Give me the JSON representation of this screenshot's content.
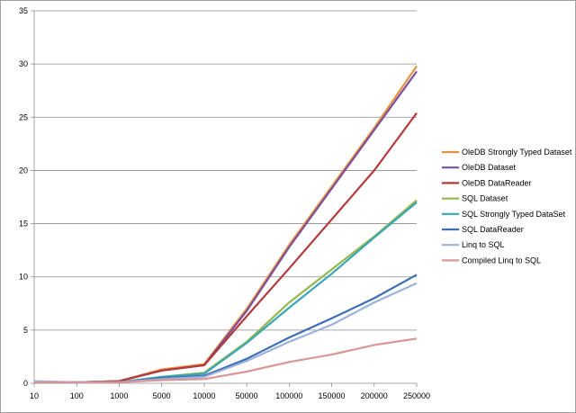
{
  "chart_data": {
    "type": "line",
    "title": "",
    "xlabel": "",
    "ylabel": "",
    "categories": [
      "10",
      "100",
      "1000",
      "5000",
      "10000",
      "50000",
      "100000",
      "150000",
      "200000",
      "250000"
    ],
    "ylim": [
      0,
      35
    ],
    "yticks": [
      "0",
      "5",
      "10",
      "15",
      "20",
      "25",
      "30",
      "35"
    ],
    "grid": "horizontal",
    "legend": "right",
    "series": [
      {
        "name": "OleDB Strongly Typed Dataset",
        "color": "#e8913c",
        "values": [
          0.1,
          0.1,
          0.2,
          1.3,
          1.8,
          7.0,
          13.0,
          18.5,
          24.0,
          29.8
        ]
      },
      {
        "name": "OleDB Dataset",
        "color": "#7a4fa0",
        "values": [
          0.1,
          0.1,
          0.2,
          1.2,
          1.7,
          6.8,
          12.8,
          18.3,
          23.8,
          29.3
        ]
      },
      {
        "name": "OleDB DataReader",
        "color": "#b23a3a",
        "values": [
          0.1,
          0.1,
          0.2,
          1.2,
          1.7,
          6.3,
          10.8,
          15.4,
          20.0,
          25.4
        ]
      },
      {
        "name": "SQL  Dataset",
        "color": "#94b84f",
        "values": [
          0.1,
          0.1,
          0.1,
          0.6,
          1.0,
          3.9,
          7.6,
          10.7,
          13.8,
          17.2
        ]
      },
      {
        "name": "SQL Strongly Typed DataSet",
        "color": "#3aa6b5",
        "values": [
          0.1,
          0.1,
          0.1,
          0.6,
          0.9,
          3.8,
          7.1,
          10.3,
          13.7,
          17.0
        ]
      },
      {
        "name": "SQL DataReader",
        "color": "#3d6eb4",
        "values": [
          0.1,
          0.1,
          0.1,
          0.5,
          0.7,
          2.3,
          4.3,
          6.1,
          8.0,
          10.2
        ]
      },
      {
        "name": "Linq to SQL",
        "color": "#9db2db",
        "values": [
          0.2,
          0.1,
          0.1,
          0.4,
          0.6,
          2.1,
          3.9,
          5.5,
          7.6,
          9.4
        ]
      },
      {
        "name": "Compiled Linq to SQL",
        "color": "#da9696",
        "values": [
          0.1,
          0.1,
          0.1,
          0.3,
          0.4,
          1.1,
          2.0,
          2.7,
          3.6,
          4.2
        ]
      }
    ]
  }
}
